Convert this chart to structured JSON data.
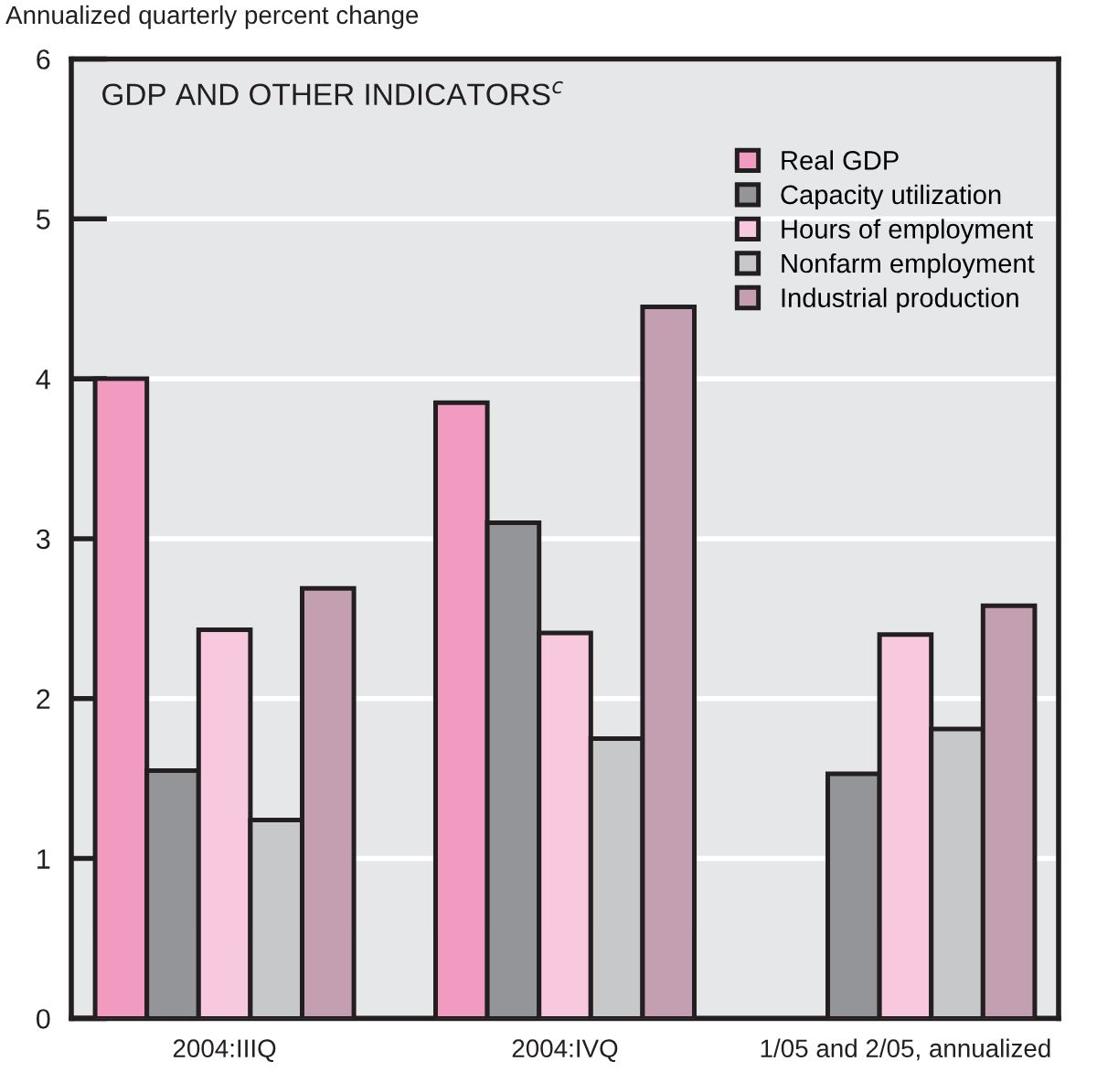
{
  "chart_data": {
    "type": "bar",
    "title": "GDP AND OTHER INDICATORS$^{c}$",
    "ylabel": "Annualized quarterly percent change",
    "categories": [
      "2004:IIIQ",
      "2004:IVQ",
      "1/05 and 2/05, annualized"
    ],
    "series": [
      {
        "name": "Real GDP",
        "color": "#f29bc1",
        "values": [
          4.0,
          3.85,
          null
        ]
      },
      {
        "name": "Capacity utilization",
        "color": "#939598",
        "values": [
          1.55,
          3.1,
          1.53
        ]
      },
      {
        "name": "Hours of employment",
        "color": "#f7c8de",
        "values": [
          2.43,
          2.41,
          2.4
        ]
      },
      {
        "name": "Nonfarm employment",
        "color": "#c7c8ca",
        "values": [
          1.24,
          1.75,
          1.81
        ]
      },
      {
        "name": "Industrial production",
        "color": "#c39fb1",
        "values": [
          2.69,
          4.45,
          2.58
        ]
      }
    ],
    "ylim": [
      0,
      6
    ],
    "yticks": [
      0,
      1,
      2,
      3,
      4,
      5,
      6
    ],
    "grid": "y",
    "legend": "top right"
  }
}
